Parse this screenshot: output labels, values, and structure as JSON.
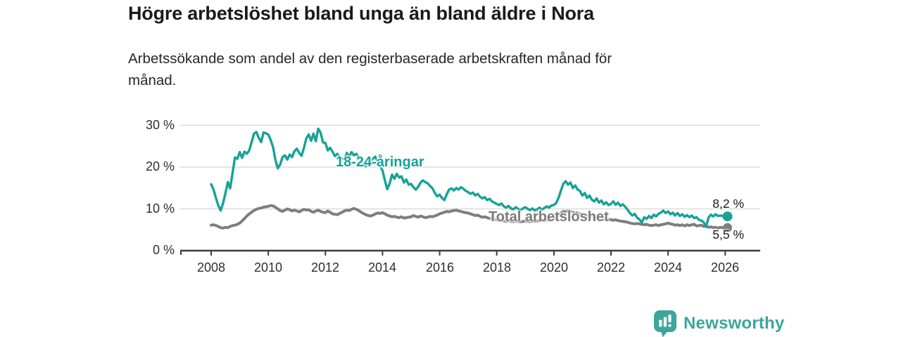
{
  "header": {
    "title": "Högre arbetslöshet bland unga än bland äldre i Nora",
    "subtitle_line1": "Arbetssökande som andel av den registerbaserade arbetskraften månad för",
    "subtitle_line2": "månad."
  },
  "chart_data": {
    "type": "line",
    "title": "Högre arbetslöshet bland unga än bland äldre i Nora",
    "subtitle": "Arbetssökande som andel av den registerbaserade arbetskraften månad för månad.",
    "x_unit": "month",
    "x_start": "2008-01",
    "x_end": "2026-02",
    "x_tick_labels": [
      "2008",
      "2010",
      "2012",
      "2014",
      "2016",
      "2018",
      "2020",
      "2022",
      "2024",
      "2026"
    ],
    "y_tick_labels": [
      "30 %",
      "20 %",
      "10 %",
      "0 %"
    ],
    "ylim": [
      0,
      31
    ],
    "grid": "horizontal",
    "legend_position": "inline-labels",
    "series": [
      {
        "name": "18-24-åringar",
        "color": "#17a296",
        "end_label": "8,2 %",
        "end_value": 8.2,
        "values": [
          15.9,
          14.6,
          12.6,
          10.8,
          9.6,
          11.4,
          13.8,
          16.4,
          14.9,
          18.6,
          22.3,
          22.0,
          23.6,
          22.2,
          23.7,
          23.2,
          24.0,
          26.0,
          28.0,
          28.4,
          27.0,
          26.0,
          28.3,
          28.1,
          27.8,
          26.5,
          24.8,
          21.7,
          19.7,
          20.6,
          22.4,
          22.8,
          21.8,
          23.0,
          22.4,
          23.8,
          24.4,
          23.4,
          22.7,
          24.6,
          26.9,
          27.8,
          26.3,
          28.0,
          26.2,
          29.2,
          28.2,
          25.9,
          25.8,
          24.0,
          24.6,
          23.7,
          22.6,
          23.2,
          22.3,
          22.0,
          21.9,
          23.4,
          22.6,
          23.6,
          22.8,
          23.2,
          22.4,
          21.6,
          20.8,
          20.2,
          20.8,
          21.4,
          22.0,
          22.5,
          21.2,
          20.2,
          19.2,
          16.8,
          14.7,
          16.0,
          18.2,
          17.2,
          18.4,
          17.5,
          17.8,
          16.3,
          17.0,
          15.8,
          16.0,
          15.2,
          14.6,
          15.3,
          16.3,
          16.8,
          16.4,
          16.1,
          15.5,
          14.9,
          13.8,
          13.0,
          13.4,
          12.6,
          12.1,
          13.5,
          14.6,
          14.9,
          14.4,
          15.0,
          14.6,
          15.2,
          14.8,
          14.3,
          14.0,
          13.6,
          13.9,
          13.2,
          13.6,
          12.9,
          12.5,
          12.8,
          12.1,
          12.4,
          11.8,
          11.5,
          11.2,
          10.9,
          11.3,
          10.6,
          10.3,
          10.7,
          10.1,
          9.9,
          10.4,
          10.0,
          9.7,
          10.1,
          10.4,
          10.0,
          9.7,
          10.1,
          9.6,
          9.9,
          10.3,
          9.8,
          10.2,
          10.6,
          10.3,
          10.8,
          10.9,
          11.4,
          12.6,
          14.4,
          16.0,
          16.6,
          15.8,
          16.3,
          15.0,
          15.6,
          14.6,
          14.3,
          13.2,
          13.8,
          12.6,
          13.2,
          12.2,
          11.8,
          12.5,
          11.5,
          12.0,
          11.1,
          11.6,
          10.9,
          11.2,
          11.8,
          11.0,
          11.5,
          10.7,
          11.1,
          10.5,
          9.8,
          9.0,
          8.4,
          8.8,
          7.9,
          7.5,
          6.7,
          8.0,
          7.6,
          8.3,
          7.8,
          8.6,
          8.2,
          8.8,
          9.1,
          9.6,
          9.0,
          9.4,
          8.7,
          9.1,
          8.4,
          9.0,
          8.3,
          8.7,
          8.1,
          8.5,
          8.0,
          8.4,
          7.8,
          8.0,
          7.4,
          7.2,
          6.8,
          5.7,
          7.9,
          8.6,
          8.2,
          8.7,
          8.3,
          8.4,
          8.3,
          8.3,
          8.2
        ]
      },
      {
        "name": "Total arbetslöshet",
        "color": "#7e7e7e",
        "end_label": "5,5 %",
        "end_value": 5.5,
        "values": [
          6.1,
          6.2,
          6.0,
          5.8,
          5.5,
          5.4,
          5.6,
          5.5,
          5.8,
          6.0,
          6.1,
          6.3,
          6.6,
          7.1,
          7.7,
          8.3,
          8.8,
          9.2,
          9.6,
          9.9,
          10.1,
          10.2,
          10.4,
          10.5,
          10.6,
          10.8,
          10.7,
          10.4,
          10.0,
          9.6,
          9.4,
          9.7,
          10.0,
          9.8,
          9.5,
          9.7,
          9.5,
          9.3,
          9.6,
          9.9,
          9.7,
          9.8,
          9.4,
          9.2,
          9.5,
          9.7,
          9.4,
          9.2,
          9.1,
          9.5,
          9.2,
          8.8,
          8.7,
          8.6,
          8.9,
          9.2,
          9.5,
          9.7,
          9.6,
          9.9,
          10.1,
          9.9,
          9.6,
          9.2,
          8.9,
          8.6,
          8.4,
          8.3,
          8.5,
          8.8,
          9.0,
          8.9,
          9.1,
          8.8,
          8.5,
          8.3,
          8.1,
          8.2,
          8.0,
          7.9,
          8.1,
          7.8,
          7.9,
          8.0,
          8.1,
          8.4,
          8.2,
          8.0,
          8.3,
          8.1,
          7.9,
          8.0,
          8.2,
          8.1,
          8.3,
          8.5,
          8.8,
          9.0,
          9.2,
          9.4,
          9.3,
          9.5,
          9.6,
          9.7,
          9.5,
          9.4,
          9.2,
          9.1,
          9.0,
          8.8,
          8.6,
          8.4,
          8.5,
          8.2,
          8.0,
          8.1,
          7.9,
          7.7,
          7.8,
          7.5,
          7.4,
          7.2,
          7.3,
          7.1,
          7.0,
          7.2,
          7.0,
          6.9,
          7.1,
          7.0,
          6.9,
          7.0,
          7.1,
          7.0,
          6.9,
          7.1,
          7.0,
          7.2,
          7.1,
          7.3,
          7.2,
          7.4,
          7.3,
          7.5,
          7.6,
          7.8,
          8.4,
          9.0,
          9.4,
          9.3,
          9.5,
          9.4,
          9.2,
          9.0,
          8.9,
          8.8,
          8.7,
          8.5,
          8.4,
          8.2,
          8.1,
          7.9,
          7.8,
          7.7,
          7.6,
          7.5,
          7.4,
          7.5,
          7.4,
          7.3,
          7.4,
          7.2,
          7.1,
          7.0,
          6.9,
          6.8,
          6.6,
          6.5,
          6.4,
          6.5,
          6.4,
          6.3,
          6.2,
          6.3,
          6.1,
          6.0,
          6.1,
          6.2,
          6.0,
          6.2,
          6.3,
          6.4,
          6.6,
          6.4,
          6.3,
          6.1,
          6.2,
          6.0,
          6.2,
          5.9,
          6.2,
          6.0,
          6.2,
          6.3,
          5.9,
          6.0,
          6.1,
          5.8,
          5.9,
          5.6,
          5.7,
          5.5,
          5.6,
          5.4,
          5.6,
          5.5,
          5.4,
          5.5
        ]
      }
    ]
  },
  "footer": {
    "brand": "Newsworthy"
  }
}
